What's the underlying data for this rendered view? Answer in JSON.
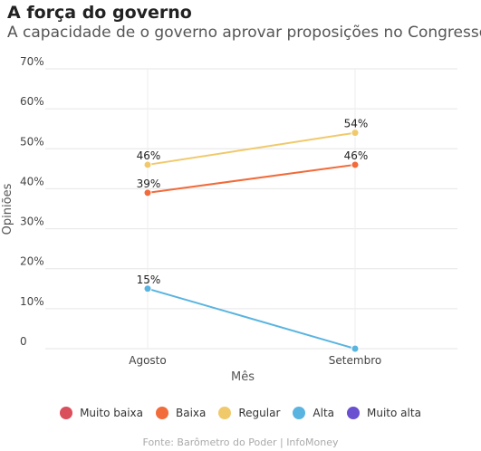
{
  "header": {
    "title": "A força do governo",
    "subtitle": "A capacidade de o governo aprovar proposições no Congresso"
  },
  "chart_data": {
    "type": "line",
    "title": "A força do governo",
    "subtitle": "A capacidade de o governo aprovar proposições no Congresso",
    "xlabel": "Mês",
    "ylabel": "Opiniões",
    "categories": [
      "Agosto",
      "Setembro"
    ],
    "ylim": [
      0,
      70
    ],
    "yticks": [
      "0",
      "10%",
      "20%",
      "30%",
      "40%",
      "50%",
      "60%",
      "70%"
    ],
    "grid": true,
    "legend_position": "bottom",
    "series": [
      {
        "name": "Muito baixa",
        "color": "#d94f5c",
        "values": [
          null,
          null
        ],
        "labels": [
          null,
          null
        ]
      },
      {
        "name": "Baixa",
        "color": "#f26b3a",
        "values": [
          39,
          46
        ],
        "labels": [
          "39%",
          "46%"
        ]
      },
      {
        "name": "Regular",
        "color": "#f0c96b",
        "values": [
          46,
          54
        ],
        "labels": [
          "46%",
          "54%"
        ]
      },
      {
        "name": "Alta",
        "color": "#5ab4e0",
        "values": [
          15,
          0
        ],
        "labels": [
          "15%",
          null
        ]
      },
      {
        "name": "Muito alta",
        "color": "#6a4fd1",
        "values": [
          null,
          null
        ],
        "labels": [
          null,
          null
        ]
      }
    ]
  },
  "source": "Fonte: Barômetro do Poder | InfoMoney"
}
